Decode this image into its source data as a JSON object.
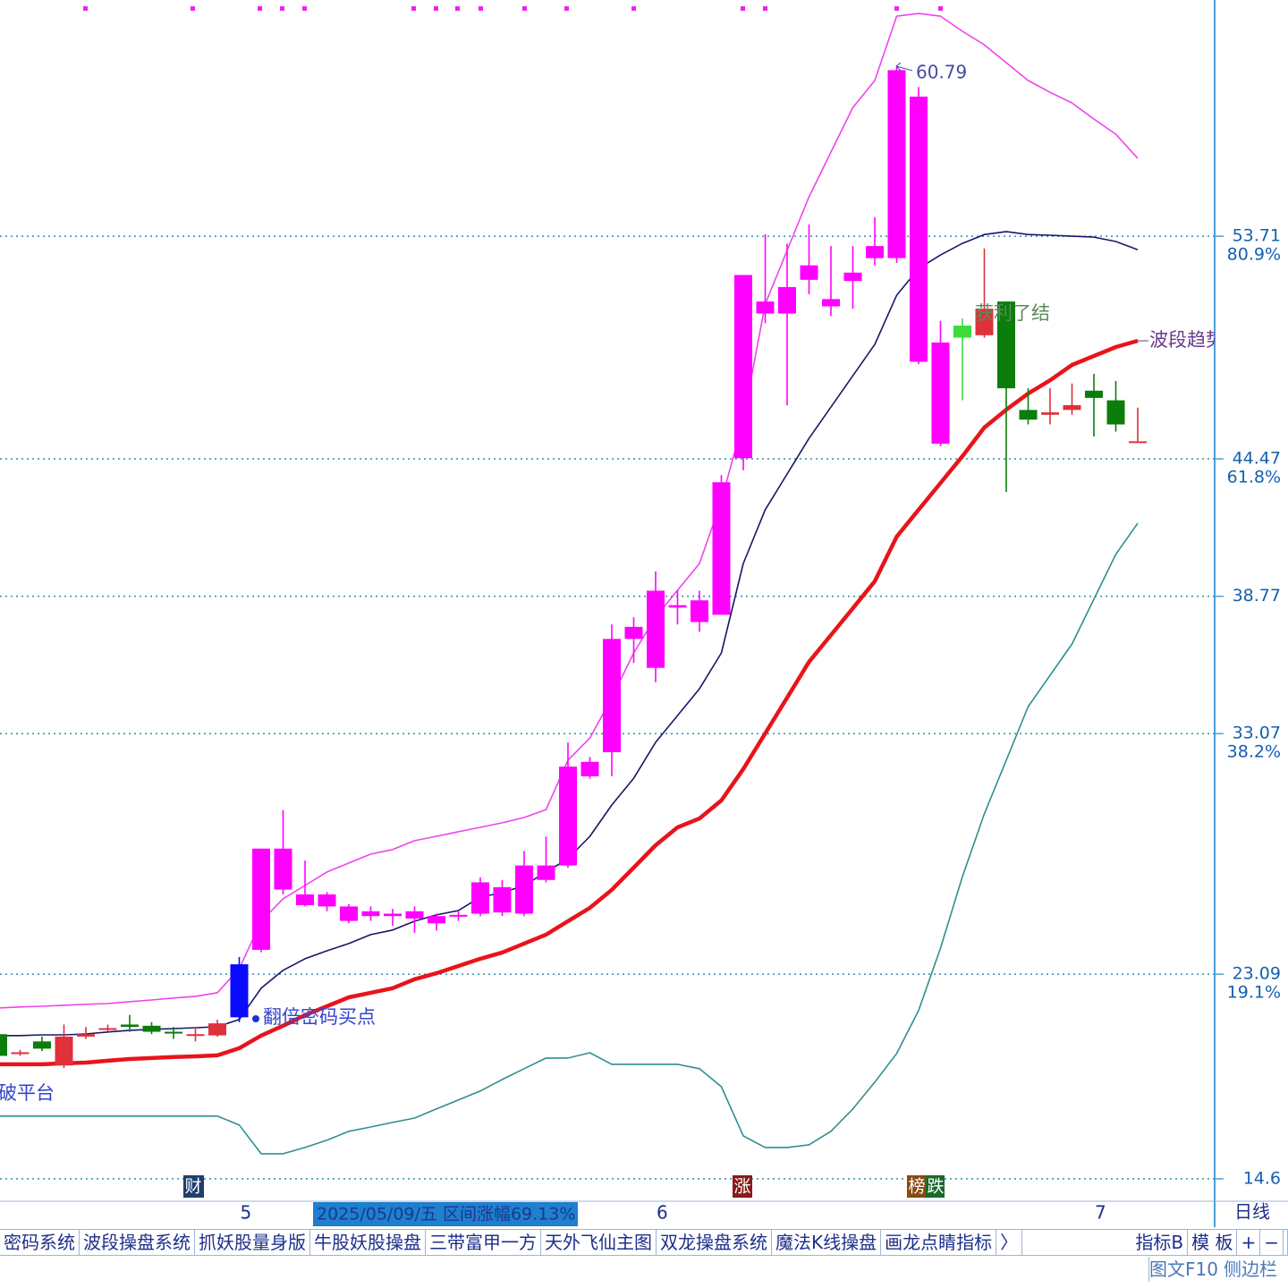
{
  "chart_data": {
    "type": "candlestick",
    "categories": [
      null,
      null,
      null,
      null,
      null,
      null,
      null,
      null,
      null,
      null,
      null,
      "5",
      null,
      null,
      null,
      null,
      null,
      null,
      null,
      null,
      null,
      null,
      null,
      null,
      null,
      null,
      null,
      null,
      null,
      null,
      "6",
      null,
      null,
      null,
      null,
      null,
      null,
      null,
      null,
      null,
      null,
      null,
      null,
      null,
      null,
      null,
      null,
      null,
      null,
      null,
      "7",
      null,
      null
    ],
    "candles": {
      "open": [
        20.6,
        19.8,
        20.3,
        19.3,
        20.5,
        20.8,
        21.0,
        20.95,
        20.7,
        20.55,
        20.55,
        21.3,
        24.1,
        28.3,
        26.4,
        26.4,
        25.9,
        25.7,
        25.6,
        25.4,
        25.5,
        25.5,
        25.6,
        25.65,
        25.6,
        27.0,
        27.6,
        31.3,
        32.3,
        37.0,
        35.8,
        38.3,
        37.7,
        38.0,
        44.5,
        50.5,
        50.5,
        51.9,
        51.1,
        51.85,
        52.8,
        52.8,
        59.5,
        49.3,
        50.0,
        49.6,
        51.0,
        46.5,
        46.3,
        46.5,
        47.3,
        46.9,
        45.2
      ],
      "high": [
        20.7,
        19.95,
        20.5,
        21.0,
        20.9,
        21.0,
        21.4,
        21.1,
        20.9,
        20.9,
        21.2,
        23.8,
        28.3,
        29.9,
        27.8,
        26.5,
        26.0,
        25.9,
        25.8,
        25.9,
        25.6,
        25.7,
        27.1,
        27.0,
        28.2,
        28.8,
        32.7,
        32.1,
        37.6,
        37.9,
        39.8,
        39.0,
        39.0,
        43.8,
        52.1,
        53.8,
        53.4,
        54.2,
        53.3,
        53.3,
        54.5,
        60.79,
        59.9,
        50.2,
        50.3,
        53.2,
        51.0,
        47.4,
        47.4,
        47.6,
        48.0,
        47.7,
        46.6
      ],
      "low": [
        19.6,
        19.7,
        19.9,
        19.2,
        20.4,
        20.7,
        20.7,
        20.6,
        20.4,
        20.3,
        20.5,
        21.1,
        24.0,
        26.4,
        25.9,
        25.7,
        25.2,
        25.3,
        25.1,
        24.8,
        24.9,
        25.3,
        25.5,
        25.5,
        25.5,
        26.9,
        27.5,
        31.2,
        31.3,
        36.0,
        35.2,
        37.6,
        37.3,
        38.0,
        44.0,
        50.1,
        46.7,
        51.3,
        50.4,
        50.7,
        52.5,
        52.6,
        48.4,
        45.0,
        46.9,
        49.5,
        43.1,
        45.9,
        45.9,
        46.3,
        45.4,
        45.6,
        45.2
      ],
      "close": [
        19.7,
        19.85,
        20.0,
        20.5,
        20.6,
        20.85,
        20.9,
        20.7,
        20.65,
        20.6,
        21.05,
        23.5,
        28.3,
        26.6,
        25.95,
        25.9,
        25.3,
        25.5,
        25.5,
        25.7,
        25.2,
        25.55,
        26.9,
        26.7,
        27.6,
        27.6,
        31.7,
        31.9,
        37.0,
        37.5,
        39.0,
        38.4,
        38.6,
        43.5,
        52.1,
        51.0,
        51.6,
        52.5,
        50.8,
        52.2,
        53.3,
        60.6,
        48.5,
        45.1,
        49.5,
        50.7,
        47.4,
        46.1,
        46.4,
        46.7,
        47.0,
        45.9,
        45.2
      ],
      "colors": [
        "#0b7d0b",
        "#e0303a",
        "#0b7d0b",
        "#e0303a",
        "#e0303a",
        "#e0303a",
        "#0b7d0b",
        "#0b7d0b",
        "#0b7d0b",
        "#e0303a",
        "#e0303a",
        "#0a0aff",
        "#ff00ff",
        "#ff00ff",
        "#ff00ff",
        "#ff00ff",
        "#ff00ff",
        "#ff00ff",
        "#ff00ff",
        "#ff00ff",
        "#ff00ff",
        "#ff00ff",
        "#ff00ff",
        "#ff00ff",
        "#ff00ff",
        "#ff00ff",
        "#ff00ff",
        "#ff00ff",
        "#ff00ff",
        "#ff00ff",
        "#ff00ff",
        "#ff00ff",
        "#ff00ff",
        "#ff00ff",
        "#ff00ff",
        "#ff00ff",
        "#ff00ff",
        "#ff00ff",
        "#ff00ff",
        "#ff00ff",
        "#ff00ff",
        "#ff00ff",
        "#ff00ff",
        "#ff00ff",
        "#3ddc3d",
        "#e0303a",
        "#0b7d0b",
        "#0b7d0b",
        "#e0303a",
        "#e0303a",
        "#0b7d0b",
        "#0b7d0b",
        "#e0303a"
      ]
    },
    "lines": [
      {
        "color": "#ee44ee",
        "values": [
          21.69,
          21.73,
          21.76,
          21.8,
          21.84,
          21.87,
          21.95,
          22.02,
          22.1,
          22.17,
          22.32,
          23.32,
          25.29,
          26.22,
          26.77,
          27.33,
          27.7,
          28.07,
          28.26,
          28.63,
          28.81,
          29.0,
          29.18,
          29.37,
          29.59,
          29.92,
          31.97,
          32.89,
          34.56,
          36.42,
          37.9,
          39.02,
          40.13,
          42.73,
          46.07,
          50.89,
          53.12,
          55.34,
          57.2,
          59.05,
          60.17,
          62.84,
          62.95,
          62.84,
          62.21,
          61.65,
          60.91,
          60.17,
          59.68,
          59.24,
          58.57,
          57.94,
          56.94
        ]
      },
      {
        "color": "#16166a",
        "values": [
          20.54,
          20.54,
          20.57,
          20.57,
          20.61,
          20.69,
          20.76,
          20.8,
          20.83,
          20.87,
          20.91,
          21.21,
          22.51,
          23.25,
          23.73,
          24.06,
          24.36,
          24.73,
          24.92,
          25.29,
          25.55,
          25.73,
          26.29,
          26.47,
          26.77,
          27.33,
          27.88,
          28.81,
          30.11,
          31.22,
          32.71,
          33.82,
          34.93,
          36.42,
          40.13,
          42.36,
          43.84,
          45.32,
          46.62,
          47.92,
          49.22,
          51.26,
          52.37,
          52.93,
          53.41,
          53.78,
          53.9,
          53.78,
          53.75,
          53.71,
          53.67,
          53.49,
          53.15
        ]
      },
      {
        "color": "#2f8f8f",
        "values": [
          17.2,
          17.2,
          17.2,
          17.2,
          17.2,
          17.2,
          17.2,
          17.2,
          17.2,
          17.2,
          17.2,
          16.83,
          15.64,
          15.64,
          15.9,
          16.2,
          16.57,
          16.75,
          16.94,
          17.12,
          17.5,
          17.87,
          18.24,
          18.72,
          19.17,
          19.61,
          19.61,
          19.83,
          19.35,
          19.35,
          19.35,
          19.35,
          19.17,
          18.42,
          16.38,
          15.9,
          15.9,
          16.01,
          16.57,
          17.5,
          18.61,
          19.8,
          21.58,
          24.17,
          27.14,
          29.74,
          31.97,
          34.19,
          35.49,
          36.79,
          38.65,
          40.51,
          41.8
        ]
      },
      {
        "color": "#e8141b",
        "emphasis": true,
        "values": [
          19.35,
          19.35,
          19.35,
          19.39,
          19.42,
          19.5,
          19.57,
          19.61,
          19.65,
          19.68,
          19.72,
          20.02,
          20.54,
          20.95,
          21.39,
          21.76,
          22.13,
          22.32,
          22.51,
          22.88,
          23.13,
          23.43,
          23.73,
          23.99,
          24.36,
          24.73,
          25.29,
          25.84,
          26.59,
          27.51,
          28.44,
          29.18,
          29.55,
          30.3,
          31.6,
          33.08,
          34.56,
          36.05,
          37.16,
          38.27,
          39.39,
          41.24,
          42.36,
          43.47,
          44.58,
          45.77,
          46.51,
          47.18,
          47.73,
          48.37,
          48.74,
          49.11,
          49.37
        ]
      }
    ],
    "ylim": [
      13.78,
      63.51
    ],
    "yticks": [
      53.71,
      44.47,
      38.77,
      33.07,
      23.09,
      14.6
    ],
    "fib_labels": [
      {
        "value": 53.71,
        "label": "80.9%"
      },
      {
        "value": 44.47,
        "label": "61.8%"
      },
      {
        "value": 33.07,
        "label": "38.2%"
      },
      {
        "value": 23.09,
        "label": "19.1%"
      }
    ],
    "grid": true
  },
  "annotations": {
    "buy_point": "翻倍密码买点",
    "take_profit": "获利了结",
    "trend": "波段趋势",
    "platform": "破平台"
  },
  "markers": [
    "财",
    "涨",
    "榜",
    "跌"
  ],
  "status_box": "2025/05/09/五  区间涨幅69.13%",
  "period": "日线",
  "tabs": [
    "密码系统",
    "波段操盘系统",
    "抓妖股量身版",
    "牛股妖股操盘",
    "三带富甲一方",
    "天外飞仙主图",
    "双龙操盘系统",
    "魔法K线操盘",
    "画龙点睛指标",
    "〉"
  ],
  "right_tabs": [
    "指标B",
    "模 板",
    "+",
    "−"
  ],
  "side": [
    "图文F10",
    "侧边栏"
  ]
}
